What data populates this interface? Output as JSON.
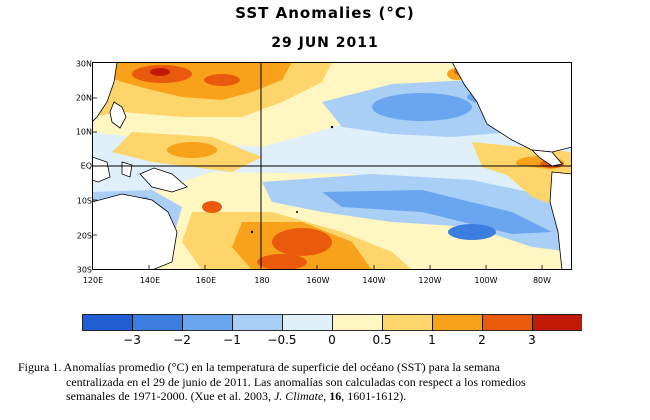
{
  "title": "SST Anomalies (°C)",
  "date": "29 JUN 2011",
  "lat_labels": [
    "30N",
    "20N",
    "10N",
    "EQ",
    "10S",
    "20S",
    "30S"
  ],
  "lon_labels": [
    "120E",
    "140E",
    "160E",
    "180",
    "160W",
    "140W",
    "120W",
    "100W",
    "80W"
  ],
  "colorbar": {
    "labels": [
      "−3",
      "−2",
      "−1",
      "−0.5",
      "0",
      "0.5",
      "1",
      "2",
      "3"
    ],
    "colors": [
      "#1f5fd1",
      "#3c7ee0",
      "#6aa5ef",
      "#a9cff7",
      "#dff0fb",
      "#fff6c2",
      "#fdd56a",
      "#f7a21a",
      "#ea5a0c",
      "#c01a05"
    ]
  },
  "caption": {
    "line1": "Figura 1. Anomalías promedio (°C) en la temperatura de superficie del océano (SST) para la semana",
    "line2": "centralizada en el 29 de junio de 2011.  Las anomalías son calculadas con respect a los romedios",
    "line3_prefix": "semanales de 1971-2000. (Xue et al. 2003, ",
    "journal": "J. Climate",
    "sep": ", ",
    "volume": "16",
    "pages": ", 1601-1612)."
  }
}
